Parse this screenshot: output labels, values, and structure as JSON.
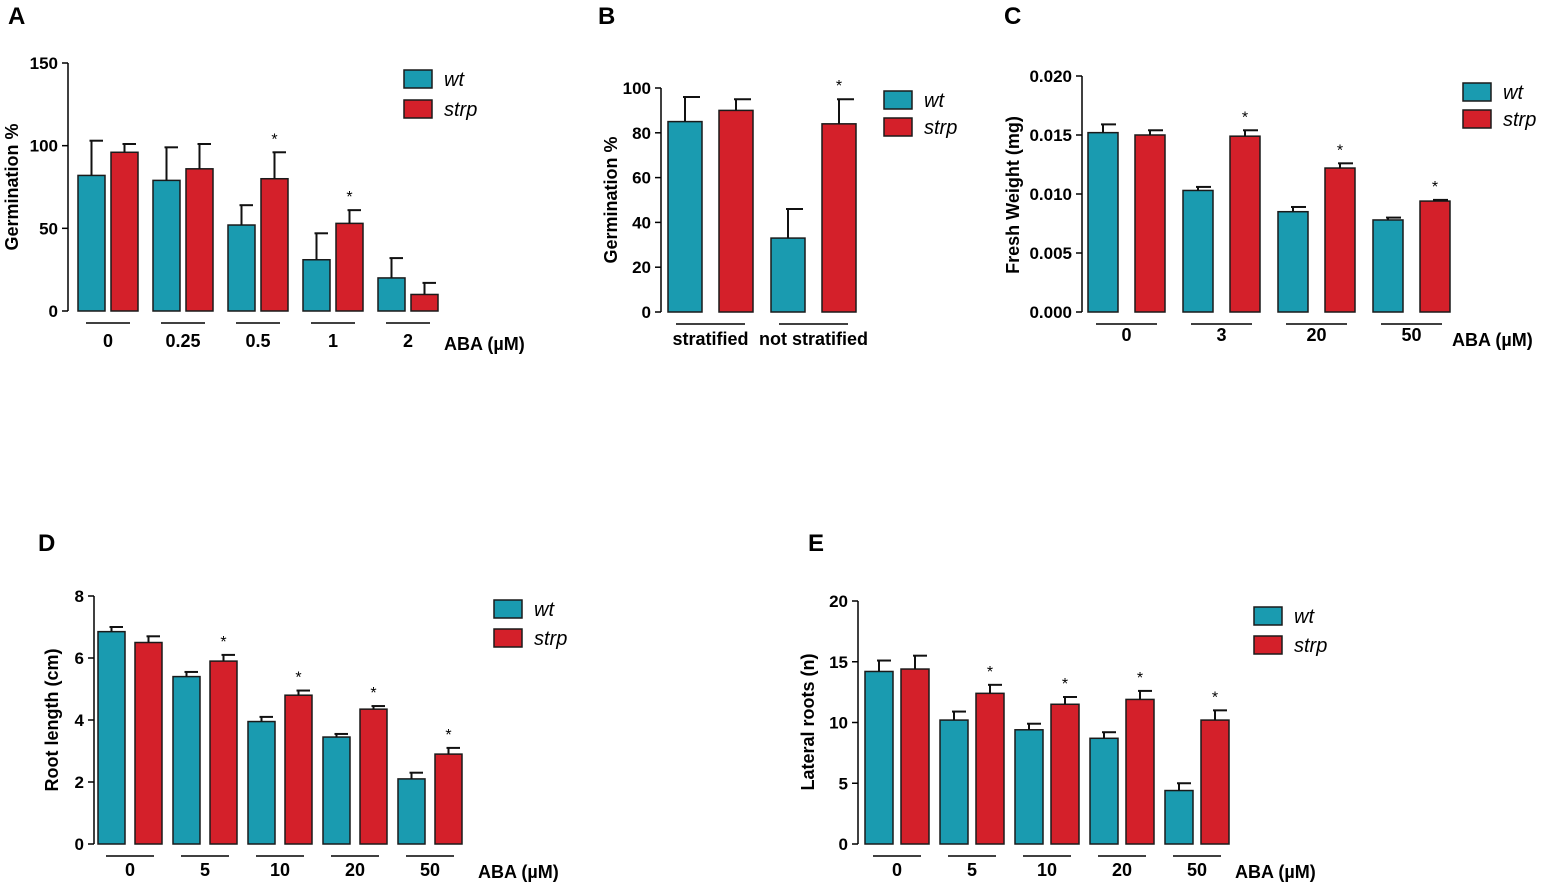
{
  "figure": {
    "colors": {
      "wt": "#1a9bb0",
      "strp": "#d4202a",
      "axis": "#000000",
      "bar_edge": "#1a1a1a"
    }
  },
  "chart_data": [
    {
      "id": "A",
      "panel_label": "A",
      "type": "bar",
      "title": "",
      "xlabel": "ABA (µM)",
      "ylabel": "Germination %",
      "ylim": [
        0,
        150
      ],
      "yticks": [
        "0",
        "50",
        "100",
        "150"
      ],
      "categories": [
        "0",
        "0.25",
        "0.5",
        "1",
        "2"
      ],
      "legend_position": "top-right",
      "grid": false,
      "series": [
        {
          "name": "wt",
          "values": [
            82,
            79,
            52,
            31,
            20
          ],
          "errors": [
            21,
            20,
            12,
            16,
            12
          ]
        },
        {
          "name": "strp",
          "values": [
            96,
            86,
            80,
            53,
            10
          ],
          "errors": [
            5,
            15,
            16,
            8,
            7
          ]
        }
      ],
      "significance": [
        "",
        "",
        "*",
        "*",
        ""
      ]
    },
    {
      "id": "B",
      "panel_label": "B",
      "type": "bar",
      "title": "",
      "xlabel": "",
      "ylabel": "Germination %",
      "ylim": [
        0,
        100
      ],
      "yticks": [
        "0",
        "20",
        "40",
        "60",
        "80",
        "100"
      ],
      "categories": [
        "stratified",
        "not stratified"
      ],
      "legend_position": "top-right",
      "grid": false,
      "series": [
        {
          "name": "wt",
          "values": [
            85,
            33
          ],
          "errors": [
            11,
            13
          ]
        },
        {
          "name": "strp",
          "values": [
            90,
            84
          ],
          "errors": [
            5,
            11
          ]
        }
      ],
      "significance": [
        "",
        "*"
      ]
    },
    {
      "id": "C",
      "panel_label": "C",
      "type": "bar",
      "title": "",
      "xlabel": "ABA (µM)",
      "ylabel": "Fresh Weight (mg)",
      "ylim": [
        0,
        0.02
      ],
      "yticks": [
        "0.000",
        "0.005",
        "0.010",
        "0.015",
        "0.020"
      ],
      "categories": [
        "0",
        "3",
        "20",
        "50"
      ],
      "legend_position": "top-right",
      "grid": false,
      "series": [
        {
          "name": "wt",
          "values": [
            0.0152,
            0.0103,
            0.0085,
            0.0078
          ],
          "errors": [
            0.0007,
            0.0003,
            0.0004,
            0.0002
          ]
        },
        {
          "name": "strp",
          "values": [
            0.015,
            0.0149,
            0.0122,
            0.0094
          ],
          "errors": [
            0.0004,
            0.0005,
            0.0004,
            0.0001
          ]
        }
      ],
      "significance": [
        "",
        "*",
        "*",
        "*"
      ]
    },
    {
      "id": "D",
      "panel_label": "D",
      "type": "bar",
      "title": "",
      "xlabel": "ABA (µM)",
      "ylabel": "Root length  (cm)",
      "ylim": [
        0,
        8
      ],
      "yticks": [
        "0",
        "2",
        "4",
        "6",
        "8"
      ],
      "categories": [
        "0",
        "5",
        "10",
        "20",
        "50"
      ],
      "legend_position": "top-right",
      "grid": false,
      "series": [
        {
          "name": "wt",
          "values": [
            6.85,
            5.4,
            3.95,
            3.45,
            2.1
          ],
          "errors": [
            0.15,
            0.15,
            0.15,
            0.1,
            0.2
          ]
        },
        {
          "name": "strp",
          "values": [
            6.5,
            5.9,
            4.8,
            4.35,
            2.9
          ],
          "errors": [
            0.2,
            0.2,
            0.15,
            0.1,
            0.2
          ]
        }
      ],
      "significance": [
        "",
        "*",
        "*",
        "*",
        "*"
      ]
    },
    {
      "id": "E",
      "panel_label": "E",
      "type": "bar",
      "title": "",
      "xlabel": "ABA (µM)",
      "ylabel": "Lateral roots (n)",
      "ylim": [
        0,
        20
      ],
      "yticks": [
        "0",
        "5",
        "10",
        "15",
        "20"
      ],
      "categories": [
        "0",
        "5",
        "10",
        "20",
        "50"
      ],
      "legend_position": "top-right",
      "grid": false,
      "series": [
        {
          "name": "wt",
          "values": [
            14.2,
            10.2,
            9.4,
            8.7,
            4.4
          ],
          "errors": [
            0.9,
            0.7,
            0.5,
            0.5,
            0.6
          ]
        },
        {
          "name": "strp",
          "values": [
            14.4,
            12.4,
            11.5,
            11.9,
            10.2
          ],
          "errors": [
            1.1,
            0.7,
            0.6,
            0.7,
            0.8
          ]
        }
      ],
      "significance": [
        "",
        "*",
        "*",
        "*",
        "*"
      ]
    }
  ]
}
